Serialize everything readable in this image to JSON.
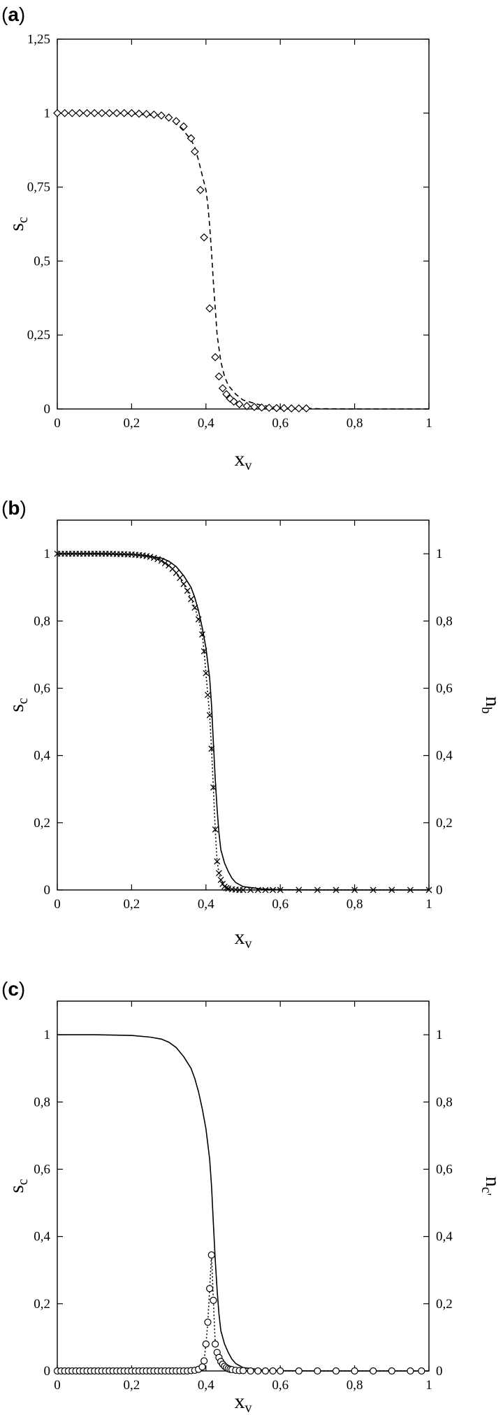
{
  "chart_data": [
    {
      "panel": "(a)",
      "type": "line",
      "xlabel": "x",
      "xlabel_sub": "v",
      "ylabel": "s",
      "ylabel_sub": "c",
      "xlim": [
        0,
        1
      ],
      "ylim": [
        0,
        1.25
      ],
      "x_ticks": [
        "0",
        "0,2",
        "0,4",
        "0,6",
        "0,8",
        "1"
      ],
      "x_tick_values": [
        0,
        0.2,
        0.4,
        0.6,
        0.8,
        1
      ],
      "y_ticks": [
        "0",
        "0,25",
        "0,5",
        "0,75",
        "1",
        "1,25"
      ],
      "y_tick_values": [
        0,
        0.25,
        0.5,
        0.75,
        1,
        1.25
      ],
      "grid": false,
      "series": [
        {
          "style": "dashed",
          "x": [
            0,
            0.05,
            0.1,
            0.15,
            0.2,
            0.25,
            0.28,
            0.3,
            0.32,
            0.34,
            0.36,
            0.37,
            0.38,
            0.39,
            0.4,
            0.405,
            0.41,
            0.415,
            0.42,
            0.425,
            0.43,
            0.44,
            0.45,
            0.46,
            0.48,
            0.5,
            0.55,
            0.6,
            0.7,
            0.8,
            0.9,
            1
          ],
          "y": [
            1,
            1,
            1,
            0.999,
            0.998,
            0.993,
            0.988,
            0.98,
            0.965,
            0.94,
            0.91,
            0.885,
            0.84,
            0.79,
            0.74,
            0.69,
            0.62,
            0.53,
            0.43,
            0.34,
            0.25,
            0.16,
            0.11,
            0.08,
            0.05,
            0.03,
            0.012,
            0.005,
            0.001,
            0,
            0,
            0
          ]
        },
        {
          "marker": "diamond",
          "x": [
            0,
            0.02,
            0.04,
            0.06,
            0.08,
            0.1,
            0.12,
            0.14,
            0.16,
            0.18,
            0.2,
            0.22,
            0.24,
            0.26,
            0.28,
            0.3,
            0.32,
            0.34,
            0.36,
            0.37,
            0.385,
            0.395,
            0.41,
            0.425,
            0.435,
            0.445,
            0.455,
            0.465,
            0.475,
            0.49,
            0.51,
            0.53,
            0.55,
            0.57,
            0.59,
            0.61,
            0.63,
            0.65,
            0.67
          ],
          "y": [
            1,
            1,
            1,
            1,
            1,
            1,
            1,
            1,
            1,
            1,
            1,
            0.998,
            0.997,
            0.995,
            0.992,
            0.985,
            0.973,
            0.955,
            0.915,
            0.87,
            0.74,
            0.58,
            0.34,
            0.175,
            0.11,
            0.07,
            0.05,
            0.035,
            0.025,
            0.016,
            0.01,
            0.007,
            0.005,
            0.004,
            0.003,
            0.003,
            0.002,
            0.002,
            0.002
          ]
        }
      ]
    },
    {
      "panel": "(b)",
      "type": "line",
      "xlabel": "x",
      "xlabel_sub": "v",
      "ylabel": "s",
      "ylabel_sub": "c",
      "y2label": "n",
      "y2label_sub": "b",
      "xlim": [
        0,
        1
      ],
      "ylim": [
        0,
        1.1
      ],
      "x_ticks": [
        "0",
        "0,2",
        "0,4",
        "0,6",
        "0,8",
        "1"
      ],
      "x_tick_values": [
        0,
        0.2,
        0.4,
        0.6,
        0.8,
        1
      ],
      "y_ticks": [
        "0",
        "0,2",
        "0,4",
        "0,6",
        "0,8",
        "1"
      ],
      "y_tick_values": [
        0,
        0.2,
        0.4,
        0.6,
        0.8,
        1
      ],
      "y2_ticks": [
        "0",
        "0,2",
        "0,4",
        "0,6",
        "0,8",
        "1"
      ],
      "grid": false,
      "series": [
        {
          "style": "solid",
          "x": [
            0,
            0.1,
            0.2,
            0.25,
            0.28,
            0.3,
            0.32,
            0.34,
            0.36,
            0.37,
            0.38,
            0.39,
            0.4,
            0.41,
            0.415,
            0.42,
            0.425,
            0.43,
            0.435,
            0.44,
            0.45,
            0.46,
            0.47,
            0.48,
            0.5,
            0.55,
            0.6,
            0.7,
            0.8,
            0.9,
            1
          ],
          "y": [
            1,
            1,
            0.998,
            0.993,
            0.987,
            0.978,
            0.962,
            0.935,
            0.9,
            0.87,
            0.83,
            0.78,
            0.72,
            0.63,
            0.55,
            0.44,
            0.33,
            0.24,
            0.17,
            0.12,
            0.08,
            0.055,
            0.035,
            0.022,
            0.01,
            0.003,
            0.001,
            0,
            0,
            0,
            0
          ]
        },
        {
          "style": "dotted",
          "marker": "x",
          "x": [
            0,
            0.01,
            0.02,
            0.03,
            0.04,
            0.05,
            0.06,
            0.07,
            0.08,
            0.09,
            0.1,
            0.11,
            0.12,
            0.13,
            0.14,
            0.15,
            0.16,
            0.17,
            0.18,
            0.19,
            0.2,
            0.21,
            0.22,
            0.23,
            0.24,
            0.25,
            0.26,
            0.27,
            0.28,
            0.29,
            0.3,
            0.31,
            0.32,
            0.33,
            0.34,
            0.35,
            0.36,
            0.37,
            0.38,
            0.39,
            0.395,
            0.4,
            0.405,
            0.41,
            0.415,
            0.42,
            0.425,
            0.43,
            0.435,
            0.44,
            0.445,
            0.45,
            0.455,
            0.46,
            0.47,
            0.48,
            0.49,
            0.5,
            0.52,
            0.54,
            0.56,
            0.58,
            0.6,
            0.65,
            0.7,
            0.75,
            0.8,
            0.85,
            0.9,
            0.95,
            1
          ],
          "y": [
            1,
            1,
            1,
            1,
            1,
            1,
            1,
            1,
            1,
            1,
            1,
            1,
            1,
            1,
            1,
            1,
            0.999,
            0.999,
            0.999,
            0.998,
            0.998,
            0.997,
            0.996,
            0.995,
            0.993,
            0.991,
            0.988,
            0.984,
            0.979,
            0.972,
            0.965,
            0.955,
            0.943,
            0.928,
            0.91,
            0.89,
            0.865,
            0.84,
            0.805,
            0.76,
            0.71,
            0.645,
            0.58,
            0.52,
            0.42,
            0.305,
            0.18,
            0.085,
            0.05,
            0.03,
            0.018,
            0.01,
            0.006,
            0.004,
            0.002,
            0.001,
            0,
            0,
            0,
            0,
            0,
            0,
            0,
            0,
            0,
            0,
            0,
            0,
            0,
            0,
            0
          ]
        }
      ]
    },
    {
      "panel": "(c)",
      "type": "line",
      "xlabel": "x",
      "xlabel_sub": "v",
      "ylabel": "s",
      "ylabel_sub": "c",
      "y2label": "n",
      "y2label_sub": "c'",
      "xlim": [
        0,
        1
      ],
      "ylim": [
        0,
        1.1
      ],
      "x_ticks": [
        "0",
        "0,2",
        "0,4",
        "0,6",
        "0,8",
        "1"
      ],
      "x_tick_values": [
        0,
        0.2,
        0.4,
        0.6,
        0.8,
        1
      ],
      "y_ticks": [
        "0",
        "0,2",
        "0,4",
        "0,6",
        "0,8",
        "1"
      ],
      "y_tick_values": [
        0,
        0.2,
        0.4,
        0.6,
        0.8,
        1
      ],
      "y2_ticks": [
        "0",
        "0,2",
        "0,4",
        "0,6",
        "0,8",
        "1"
      ],
      "grid": false,
      "series": [
        {
          "style": "solid",
          "x": [
            0,
            0.1,
            0.2,
            0.25,
            0.28,
            0.3,
            0.32,
            0.34,
            0.36,
            0.37,
            0.38,
            0.39,
            0.4,
            0.41,
            0.415,
            0.42,
            0.425,
            0.43,
            0.435,
            0.44,
            0.45,
            0.46,
            0.47,
            0.48,
            0.5,
            0.55,
            0.6,
            0.7,
            0.8,
            0.9,
            1
          ],
          "y": [
            1,
            1,
            0.998,
            0.993,
            0.987,
            0.978,
            0.962,
            0.935,
            0.9,
            0.87,
            0.83,
            0.78,
            0.72,
            0.63,
            0.55,
            0.44,
            0.33,
            0.24,
            0.17,
            0.12,
            0.08,
            0.055,
            0.035,
            0.022,
            0.01,
            0.003,
            0.001,
            0,
            0,
            0,
            0
          ]
        },
        {
          "style": "dotted",
          "marker": "circle",
          "x": [
            0,
            0.01,
            0.02,
            0.03,
            0.04,
            0.05,
            0.06,
            0.07,
            0.08,
            0.09,
            0.1,
            0.11,
            0.12,
            0.13,
            0.14,
            0.15,
            0.16,
            0.17,
            0.18,
            0.19,
            0.2,
            0.21,
            0.22,
            0.23,
            0.24,
            0.25,
            0.26,
            0.27,
            0.28,
            0.29,
            0.3,
            0.31,
            0.32,
            0.33,
            0.34,
            0.35,
            0.36,
            0.37,
            0.38,
            0.39,
            0.395,
            0.4,
            0.405,
            0.41,
            0.415,
            0.42,
            0.425,
            0.43,
            0.435,
            0.44,
            0.445,
            0.45,
            0.455,
            0.46,
            0.465,
            0.47,
            0.48,
            0.49,
            0.5,
            0.52,
            0.54,
            0.56,
            0.58,
            0.6,
            0.65,
            0.7,
            0.75,
            0.8,
            0.85,
            0.9,
            0.95,
            0.98
          ],
          "y": [
            0,
            0,
            0,
            0,
            0,
            0,
            0,
            0,
            0,
            0,
            0,
            0,
            0,
            0,
            0,
            0,
            0,
            0,
            0,
            0,
            0,
            0,
            0,
            0,
            0,
            0,
            0,
            0,
            0,
            0,
            0,
            0,
            0,
            0,
            0,
            0,
            0.001,
            0.002,
            0.005,
            0.012,
            0.03,
            0.08,
            0.145,
            0.245,
            0.345,
            0.21,
            0.08,
            0.055,
            0.04,
            0.028,
            0.02,
            0.014,
            0.01,
            0.007,
            0.005,
            0.004,
            0.002,
            0.001,
            0.001,
            0,
            0,
            0,
            0,
            0,
            0,
            0,
            0,
            0,
            0,
            0,
            0,
            0
          ]
        }
      ]
    }
  ]
}
